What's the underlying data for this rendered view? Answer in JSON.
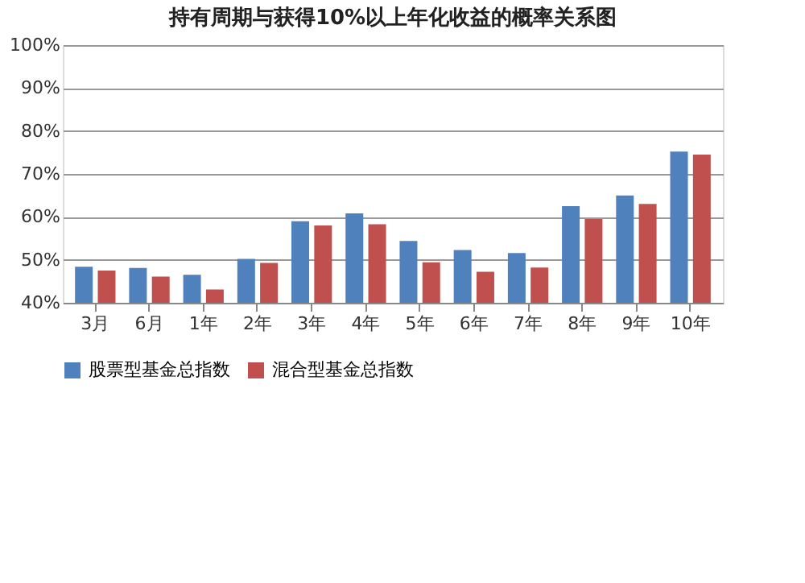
{
  "chart_data": {
    "type": "bar",
    "title": "持有周期与获得10%以上年化收益的概率关系图",
    "categories": [
      "3月",
      "6月",
      "1年",
      "2年",
      "3年",
      "4年",
      "5年",
      "6年",
      "7年",
      "8年",
      "9年",
      "10年"
    ],
    "series": [
      {
        "name": "股票型基金总指数",
        "color": "#4f81bd",
        "values": [
          48.4,
          48.1,
          46.5,
          50.2,
          59.0,
          60.8,
          54.4,
          52.3,
          51.6,
          62.5,
          65,
          75.2
        ]
      },
      {
        "name": "混合型基金总指数",
        "color": "#c0504d",
        "values": [
          47.5,
          46.1,
          43.1,
          49.3,
          58.0,
          58.3,
          49.4,
          47.2,
          48.2,
          59.5,
          63,
          74.5
        ]
      }
    ],
    "ylim": [
      40,
      100
    ],
    "yticks": [
      {
        "value": 40,
        "label": "40%"
      },
      {
        "value": 50,
        "label": "50%"
      },
      {
        "value": 60,
        "label": "60%"
      },
      {
        "value": 70,
        "label": "70%"
      },
      {
        "value": 80,
        "label": "80%"
      },
      {
        "value": 90,
        "label": "90%"
      },
      {
        "value": 100,
        "label": "100%"
      }
    ],
    "grid": "y",
    "legend": "bottom"
  }
}
